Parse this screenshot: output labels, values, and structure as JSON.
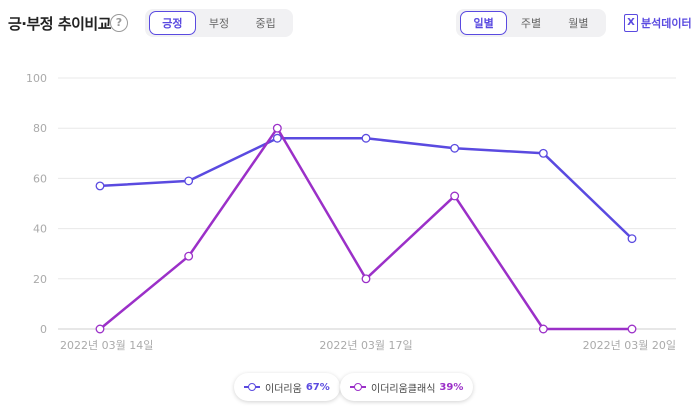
{
  "header": {
    "title": "긍·부정 추이비교",
    "help_icon": "?",
    "sentiment_tabs": [
      {
        "label": "긍정",
        "active": true
      },
      {
        "label": "부정",
        "active": false
      },
      {
        "label": "중립",
        "active": false
      }
    ],
    "period_tabs": [
      {
        "label": "일별",
        "active": true
      },
      {
        "label": "주별",
        "active": false
      },
      {
        "label": "월별",
        "active": false
      }
    ],
    "export_label": "분석데이터",
    "export_icon": "excel-icon"
  },
  "chart_data": {
    "type": "line",
    "x": [
      "2022-03-14",
      "2022-03-15",
      "2022-03-16",
      "2022-03-17",
      "2022-03-18",
      "2022-03-19",
      "2022-03-20"
    ],
    "x_tick_labels": [
      "2022년 03월 14일",
      "2022년 03월 17일",
      "2022년 03월 20일"
    ],
    "y_ticks": [
      0,
      20,
      40,
      60,
      80,
      100
    ],
    "ylim": [
      0,
      100
    ],
    "grid": true,
    "series": [
      {
        "name": "이더리움",
        "percent": "67%",
        "color": "#5a4ae0",
        "values": [
          57,
          59,
          76,
          76,
          72,
          70,
          36
        ]
      },
      {
        "name": "이더리움클래식",
        "percent": "39%",
        "color": "#9b30c8",
        "values": [
          0,
          29,
          80,
          20,
          53,
          0,
          0
        ]
      }
    ]
  }
}
